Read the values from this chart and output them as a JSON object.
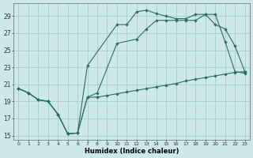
{
  "xlabel": "Humidex (Indice chaleur)",
  "bg_color": "#cce8e8",
  "grid_color": "#a8cccc",
  "line_color": "#2a6e62",
  "xlim": [
    -0.5,
    23.5
  ],
  "ylim": [
    14.5,
    30.5
  ],
  "xticks": [
    0,
    1,
    2,
    3,
    4,
    5,
    6,
    7,
    8,
    9,
    10,
    11,
    12,
    13,
    14,
    15,
    16,
    17,
    18,
    19,
    20,
    21,
    22,
    23
  ],
  "yticks": [
    15,
    17,
    19,
    21,
    23,
    25,
    27,
    29
  ],
  "line1_x": [
    0,
    1,
    2,
    3,
    4,
    5,
    6,
    7,
    8,
    9,
    10,
    11,
    12,
    13,
    14,
    15,
    16,
    17,
    18,
    19,
    20,
    21,
    22,
    23
  ],
  "line1_y": [
    20.5,
    20.0,
    19.2,
    19.0,
    17.5,
    15.2,
    15.3,
    19.5,
    19.5,
    19.7,
    19.9,
    20.1,
    20.3,
    20.5,
    20.7,
    20.9,
    21.1,
    21.4,
    21.6,
    21.8,
    22.0,
    22.2,
    22.4,
    22.5
  ],
  "line2_x": [
    0,
    1,
    2,
    3,
    4,
    5,
    6,
    7,
    8,
    10,
    12,
    13,
    14,
    15,
    16,
    17,
    18,
    19,
    20,
    21,
    22,
    23
  ],
  "line2_y": [
    20.5,
    20.0,
    19.2,
    19.0,
    17.5,
    15.2,
    15.3,
    19.5,
    20.0,
    25.8,
    26.3,
    27.5,
    28.5,
    28.5,
    28.5,
    28.5,
    28.5,
    29.2,
    28.0,
    27.5,
    25.5,
    22.5
  ],
  "line3_x": [
    0,
    1,
    2,
    3,
    4,
    5,
    6,
    7,
    10,
    11,
    12,
    13,
    14,
    15,
    16,
    17,
    18,
    19,
    20,
    21,
    22,
    23
  ],
  "line3_y": [
    20.5,
    20.0,
    19.2,
    19.0,
    17.5,
    15.2,
    15.3,
    23.2,
    28.0,
    28.0,
    29.5,
    29.7,
    29.3,
    29.0,
    28.7,
    28.7,
    29.2,
    29.2,
    29.2,
    26.0,
    22.5,
    22.3
  ]
}
